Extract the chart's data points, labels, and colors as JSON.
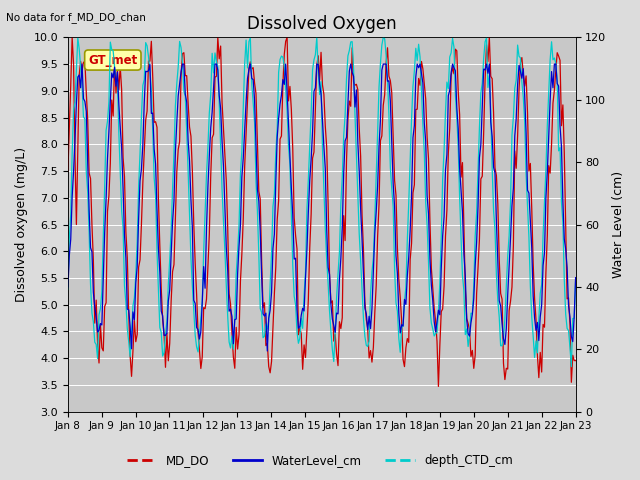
{
  "title": "Dissolved Oxygen",
  "top_left_text": "No data for f_MD_DO_chan",
  "annotation_text": "GT_met",
  "ylabel_left": "Dissolved oxygen (mg/L)",
  "ylabel_right": "Water Level (cm)",
  "ylim_left": [
    3.0,
    10.0
  ],
  "ylim_right": [
    0,
    120
  ],
  "date_labels": [
    "Jan 8",
    "Jan 9",
    "Jan 10",
    "Jan 11",
    "Jan 12",
    "Jan 13",
    "Jan 14",
    "Jan 15",
    "Jan 16",
    "Jan 17",
    "Jan 18",
    "Jan 19",
    "Jan 20",
    "Jan 21",
    "Jan 22",
    "Jan 23"
  ],
  "bg_color": "#dcdcdc",
  "plot_bg_color": "#c8c8c8",
  "line_MD_DO_color": "#cc0000",
  "line_WL_color": "#0000cc",
  "line_CTD_color": "#00cccc",
  "legend_labels": [
    "MD_DO",
    "WaterLevel_cm",
    "depth_CTD_cm"
  ],
  "figsize": [
    6.4,
    4.8
  ],
  "dpi": 100
}
